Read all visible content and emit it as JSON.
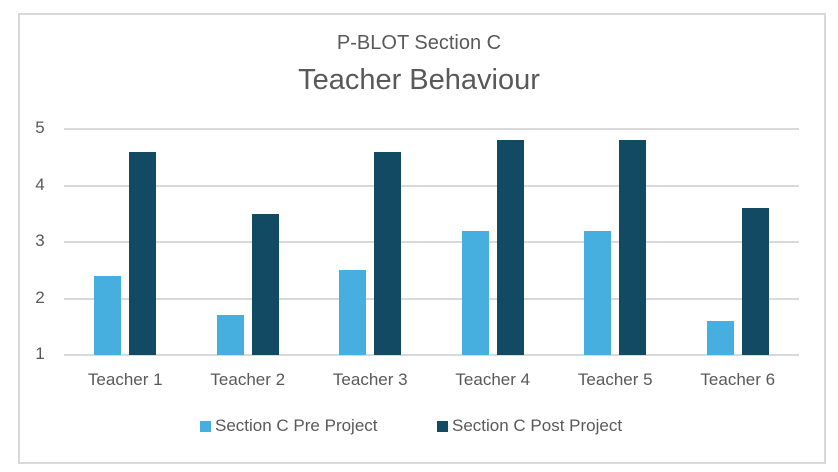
{
  "chart_data": {
    "type": "bar",
    "title": "Teacher Behaviour",
    "subtitle": "P-BLOT Section C",
    "xlabel": "",
    "ylabel": "",
    "ylim": [
      1,
      5
    ],
    "yticks": [
      "1",
      "2",
      "3",
      "4",
      "5"
    ],
    "grid": true,
    "legend_position": "bottom",
    "categories": [
      "Teacher 1",
      "Teacher 2",
      "Teacher 3",
      "Teacher 4",
      "Teacher 5",
      "Teacher 6"
    ],
    "series": [
      {
        "name": "Section C Pre Project",
        "color": "#47afe0",
        "values": [
          2.4,
          1.7,
          2.5,
          3.2,
          3.2,
          1.6
        ]
      },
      {
        "name": "Section C Post Project",
        "color": "#134a63",
        "values": [
          4.6,
          3.5,
          4.6,
          4.8,
          4.8,
          3.6
        ]
      }
    ]
  }
}
